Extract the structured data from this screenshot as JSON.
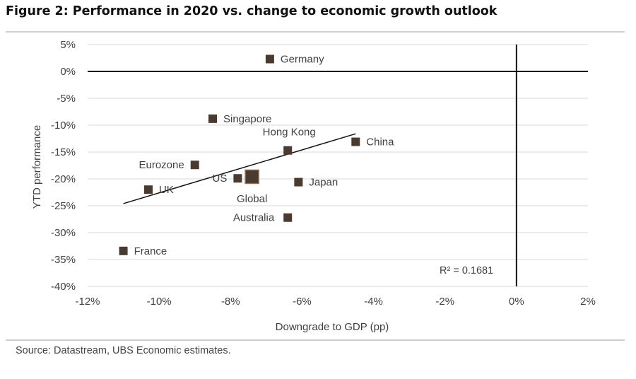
{
  "figure": {
    "title": "Figure 2: Performance in 2020 vs. change to economic growth outlook",
    "source": "Source:  Datastream, UBS Economic estimates."
  },
  "chart_data": {
    "type": "scatter",
    "xlabel": "Downgrade to GDP (pp)",
    "ylabel": "YTD performance",
    "xlim": [
      -12,
      2
    ],
    "ylim": [
      -40,
      5
    ],
    "x_ticks": [
      {
        "value": -12,
        "label": "-12%"
      },
      {
        "value": -10,
        "label": "-10%"
      },
      {
        "value": -8,
        "label": "-8%"
      },
      {
        "value": -6,
        "label": "-6%"
      },
      {
        "value": -4,
        "label": "-4%"
      },
      {
        "value": -2,
        "label": "-2%"
      },
      {
        "value": 0,
        "label": "0%"
      },
      {
        "value": 2,
        "label": "2%"
      }
    ],
    "y_ticks": [
      {
        "value": 5,
        "label": "5%"
      },
      {
        "value": 0,
        "label": "0%"
      },
      {
        "value": -5,
        "label": "-5%"
      },
      {
        "value": -10,
        "label": "-10%"
      },
      {
        "value": -15,
        "label": "-15%"
      },
      {
        "value": -20,
        "label": "-20%"
      },
      {
        "value": -25,
        "label": "-25%"
      },
      {
        "value": -30,
        "label": "-30%"
      },
      {
        "value": -35,
        "label": "-35%"
      },
      {
        "value": -40,
        "label": "-40%"
      }
    ],
    "grid": "horizontal",
    "marker_color": "#4a3a30",
    "points": [
      {
        "label": "Germany",
        "x": -6.9,
        "y": 2.3,
        "label_pos": "right"
      },
      {
        "label": "Singapore",
        "x": -8.5,
        "y": -8.8,
        "label_pos": "right"
      },
      {
        "label": "Hong Kong",
        "x": -6.4,
        "y": -14.7,
        "label_pos": "above"
      },
      {
        "label": "China",
        "x": -4.5,
        "y": -13.1,
        "label_pos": "right"
      },
      {
        "label": "Eurozone",
        "x": -9.0,
        "y": -17.4,
        "label_pos": "left"
      },
      {
        "label": "US",
        "x": -7.8,
        "y": -19.9,
        "label_pos": "left"
      },
      {
        "label": "Global",
        "x": -7.4,
        "y": -19.6,
        "label_pos": "below",
        "size": "large"
      },
      {
        "label": "Japan",
        "x": -6.1,
        "y": -20.6,
        "label_pos": "right"
      },
      {
        "label": "UK",
        "x": -10.3,
        "y": -22.0,
        "label_pos": "right"
      },
      {
        "label": "Australia",
        "x": -6.4,
        "y": -27.2,
        "label_pos": "left-below"
      },
      {
        "label": "France",
        "x": -11.0,
        "y": -33.4,
        "label_pos": "right"
      }
    ],
    "trendline": {
      "x": [
        -11.0,
        -4.5
      ],
      "y": [
        -24.6,
        -11.6
      ]
    },
    "annotation": "R² = 0.1681"
  }
}
